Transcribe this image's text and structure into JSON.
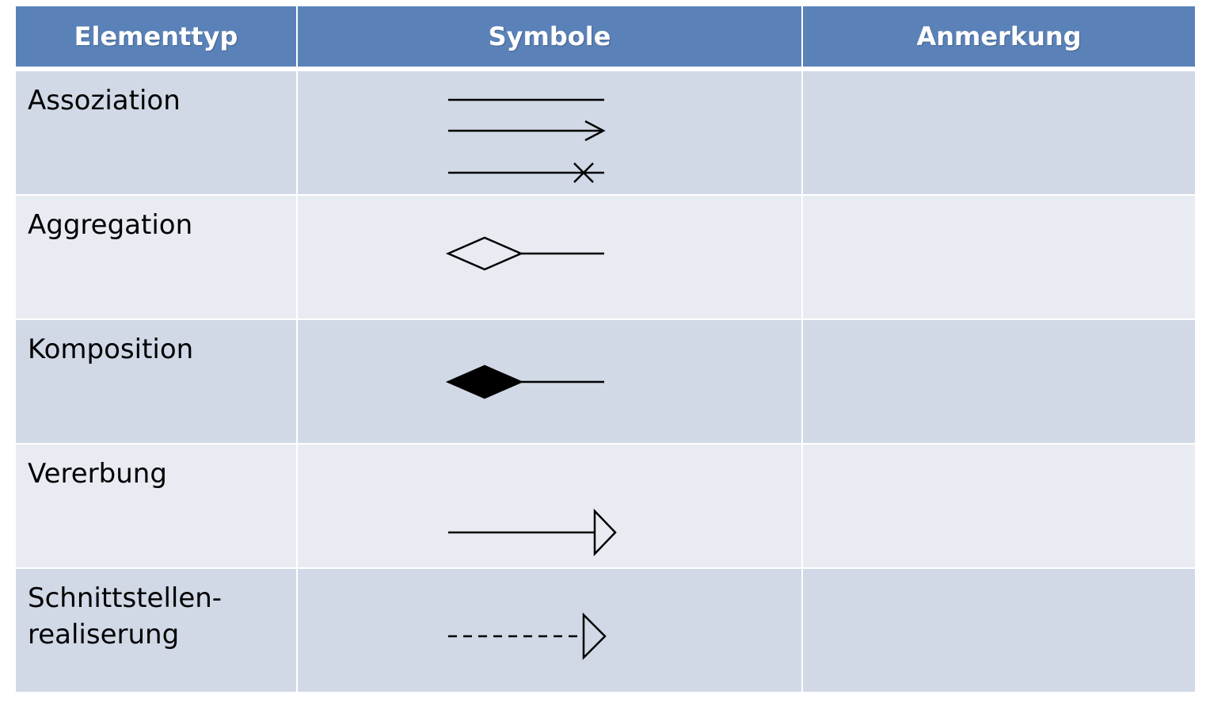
{
  "table": {
    "headers": {
      "element_type": "Elementtyp",
      "symbols": "Symbole",
      "remark": "Anmerkung"
    },
    "rows": [
      {
        "element_type": "Assoziation",
        "symbols": [
          "plain-line",
          "open-arrow-line",
          "cross-end-line"
        ],
        "remark": ""
      },
      {
        "element_type": "Aggregation",
        "symbols": [
          "hollow-diamond-line"
        ],
        "remark": ""
      },
      {
        "element_type": "Komposition",
        "symbols": [
          "filled-diamond-line"
        ],
        "remark": ""
      },
      {
        "element_type": "Vererbung",
        "symbols": [
          "hollow-triangle-line"
        ],
        "remark": ""
      },
      {
        "element_type": "Schnittstellen-\nrealiserung",
        "symbols": [
          "dashed-hollow-triangle-line"
        ],
        "remark": ""
      }
    ]
  },
  "colors": {
    "header_bg": "#5a82b9",
    "row_dark_bg": "#d1d8e6",
    "row_light_bg": "#e8ebf2"
  }
}
